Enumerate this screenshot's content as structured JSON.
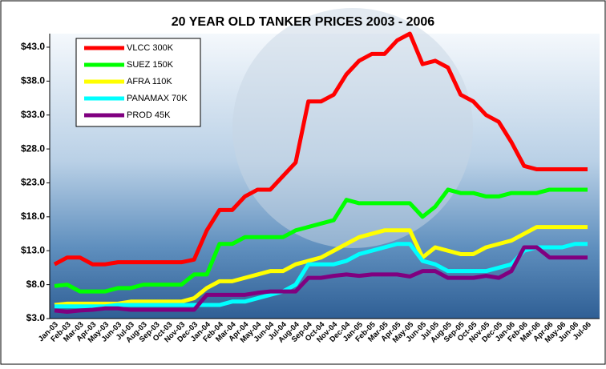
{
  "chart_data": {
    "type": "line",
    "title": "20 YEAR OLD TANKER PRICES 2003 - 2006",
    "categories": [
      "Jan-03",
      "Feb-03",
      "Mar-03",
      "Apr-03",
      "May-03",
      "Jun-03",
      "Jul-03",
      "Aug-03",
      "Sep-03",
      "Oct-03",
      "Nov-03",
      "Dec-03",
      "Jan-04",
      "Feb-04",
      "Mar-04",
      "Apr-04",
      "May-04",
      "Jun-04",
      "Jul-04",
      "Aug-04",
      "Sep-04",
      "Oct-04",
      "Nov-04",
      "Dec-04",
      "Jan-05",
      "Feb-05",
      "Mar-05",
      "Apr-05",
      "May-05",
      "Jun-05",
      "Jul-05",
      "Aug-05",
      "Sep-05",
      "Oct-05",
      "Nov-05",
      "Dec-05",
      "Jan-06",
      "Feb-06",
      "Mar-06",
      "Apr-06",
      "May-06",
      "Jun-06",
      "Jul-06"
    ],
    "series": [
      {
        "name": "VLCC 300K",
        "color": "#ff0000",
        "values": [
          11,
          12,
          12,
          11,
          11,
          11.3,
          11.3,
          11.3,
          11.3,
          11.3,
          11.3,
          11.7,
          16,
          19,
          19,
          21,
          22,
          22,
          24,
          26,
          35,
          35,
          36,
          39,
          41,
          42,
          42,
          44,
          45,
          40.5,
          41,
          40,
          36,
          35,
          33,
          32,
          29,
          25.5,
          25,
          25,
          25,
          25,
          25
        ]
      },
      {
        "name": "SUEZ 150K",
        "color": "#00ff00",
        "values": [
          7.8,
          8,
          7,
          7,
          7,
          7.5,
          7.5,
          8,
          8,
          8,
          8,
          9.5,
          9.5,
          14,
          14,
          15,
          15,
          15,
          15,
          16,
          16.5,
          17,
          17.5,
          20.5,
          20,
          20,
          20,
          20,
          20,
          18,
          19.5,
          22,
          21.5,
          21.5,
          21,
          21,
          21.5,
          21.5,
          21.5,
          22,
          22,
          22,
          22
        ]
      },
      {
        "name": "AFRA 110K",
        "color": "#ffff00",
        "values": [
          5,
          5.2,
          5.2,
          5.2,
          5.2,
          5.2,
          5.5,
          5.5,
          5.5,
          5.5,
          5.5,
          6,
          7.5,
          8.5,
          8.5,
          9,
          9.5,
          10,
          10,
          11,
          11.5,
          12,
          13,
          14,
          15,
          15.5,
          16,
          16,
          16,
          12,
          13.5,
          13,
          12.5,
          12.5,
          13.5,
          14,
          14.5,
          15.5,
          16.5,
          16.5,
          16.5,
          16.5,
          16.5
        ]
      },
      {
        "name": "PANAMAX 70K",
        "color": "#00ffff",
        "values": [
          4.8,
          4.8,
          4.8,
          4.8,
          4.8,
          5,
          5,
          5,
          5,
          5,
          5,
          5,
          5,
          5,
          5.5,
          5.5,
          6,
          6.5,
          7,
          8,
          11,
          11,
          11,
          11.5,
          12.5,
          13,
          13.5,
          14,
          14,
          11.5,
          11,
          10,
          10,
          10,
          10,
          10.5,
          11,
          13,
          13.5,
          13.5,
          13.5,
          14,
          14
        ]
      },
      {
        "name": "PROD 45K",
        "color": "#800080",
        "values": [
          4.2,
          4,
          4.2,
          4.3,
          4.5,
          4.5,
          4.3,
          4.3,
          4.3,
          4.3,
          4.3,
          4.3,
          6.5,
          6.5,
          6.5,
          6.5,
          6.8,
          7,
          7,
          7,
          9,
          9,
          9.3,
          9.5,
          9.3,
          9.5,
          9.5,
          9.5,
          9.2,
          10,
          10,
          9,
          9,
          9,
          9.3,
          9,
          10,
          13.5,
          13.5,
          12,
          12,
          12,
          12
        ]
      }
    ],
    "ylim": [
      3,
      45
    ],
    "yticks": [
      {
        "value": 3,
        "label": "$3.0"
      },
      {
        "value": 8,
        "label": "$8.0"
      },
      {
        "value": 13,
        "label": "$13.0"
      },
      {
        "value": 18,
        "label": "$18.0"
      },
      {
        "value": 23,
        "label": "$23.0"
      },
      {
        "value": 28,
        "label": "$28.0"
      },
      {
        "value": 33,
        "label": "$33.0"
      },
      {
        "value": 38,
        "label": "$38.0"
      },
      {
        "value": 43,
        "label": "$43.0"
      }
    ],
    "legend": "upper left"
  }
}
